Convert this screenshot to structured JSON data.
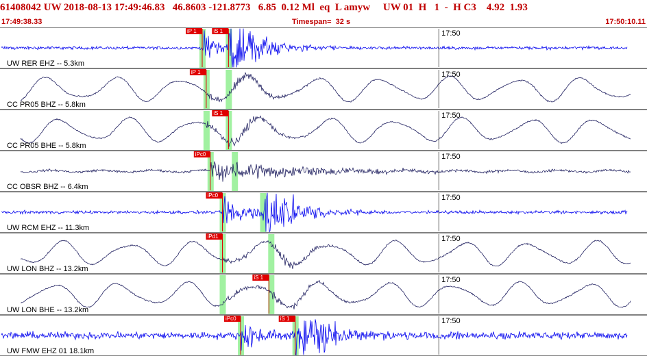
{
  "header": {
    "event_line": "61408042 UW 2018-08-13 17:49:46.83   46.8603 -121.8773   6.85  0.12 Ml  eq  L amyw     UW 01  H   1  -  H C3    4.92  1.93",
    "start_time": "17:49:38.33",
    "timespan": "Timespan=  32 s",
    "end_time": "17:50:10.11"
  },
  "chart_data": {
    "type": "line",
    "x_range_seconds": [
      0,
      32
    ],
    "time_marker_label": "17:50",
    "time_marker_offset_s": 21.7,
    "series": [
      {
        "name": "UW RER EHZ -- 5.3km",
        "color": "#0000ee",
        "style": "hf",
        "p_time": 10.0,
        "s_time": 11.3,
        "amp": 0.15,
        "picks": [
          {
            "label": "iP 1",
            "t": 10.0
          },
          {
            "label": "iS 1",
            "t": 11.3
          }
        ]
      },
      {
        "name": "CC PR05 BHZ -- 5.8km",
        "color": "#202060",
        "style": "lf",
        "p_time": 10.2,
        "s_time": 11.3,
        "amp": 0.55,
        "picks": [
          {
            "label": "iP 1",
            "t": 10.2
          }
        ]
      },
      {
        "name": "CC PR05 BHE -- 5.8km",
        "color": "#202060",
        "style": "lf",
        "p_time": 10.2,
        "s_time": 11.3,
        "amp": 0.55,
        "picks": [
          {
            "label": "iS 1",
            "t": 11.3
          }
        ]
      },
      {
        "name": "CC OBSR BHZ -- 6.4km",
        "color": "#202060",
        "style": "mix",
        "p_time": 10.4,
        "s_time": 11.6,
        "amp": 0.35,
        "picks": [
          {
            "label": "iPc0",
            "t": 10.4
          }
        ]
      },
      {
        "name": "UW RCM EHZ -- 11.3km",
        "color": "#0000ee",
        "style": "hf",
        "p_time": 11.0,
        "s_time": 13.0,
        "amp": 0.15,
        "picks": [
          {
            "label": "iPc0",
            "t": 11.0
          }
        ]
      },
      {
        "name": "UW LON BHZ -- 13.2km",
        "color": "#202060",
        "style": "lf",
        "p_time": 11.0,
        "s_time": 13.4,
        "amp": 0.55,
        "picks": [
          {
            "label": "iPd1",
            "t": 11.0
          }
        ]
      },
      {
        "name": "UW LON BHE -- 13.2km",
        "color": "#202060",
        "style": "lf",
        "p_time": 11.0,
        "s_time": 13.4,
        "amp": 0.5,
        "picks": [
          {
            "label": "iS 1",
            "t": 13.3
          }
        ]
      },
      {
        "name": "UW FMW EHZ 01 18.1km",
        "color": "#0000ee",
        "style": "hf",
        "p_time": 11.9,
        "s_time": 14.6,
        "amp": 0.35,
        "picks": [
          {
            "label": "iPc0",
            "t": 11.9
          },
          {
            "label": "iS 1",
            "t": 14.6
          }
        ]
      }
    ],
    "grid": false,
    "legend": "none"
  }
}
